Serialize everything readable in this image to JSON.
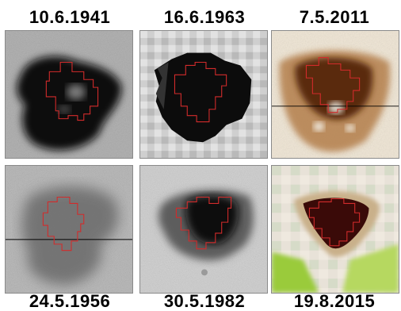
{
  "labels": {
    "top": [
      "10.6.1941",
      "16.6.1963",
      "7.5.2011"
    ],
    "bottom": [
      "24.5.1956",
      "30.5.1982",
      "19.8.2015"
    ]
  },
  "colors": {
    "outline": "#d22b2b",
    "cut_line": "#000000"
  }
}
